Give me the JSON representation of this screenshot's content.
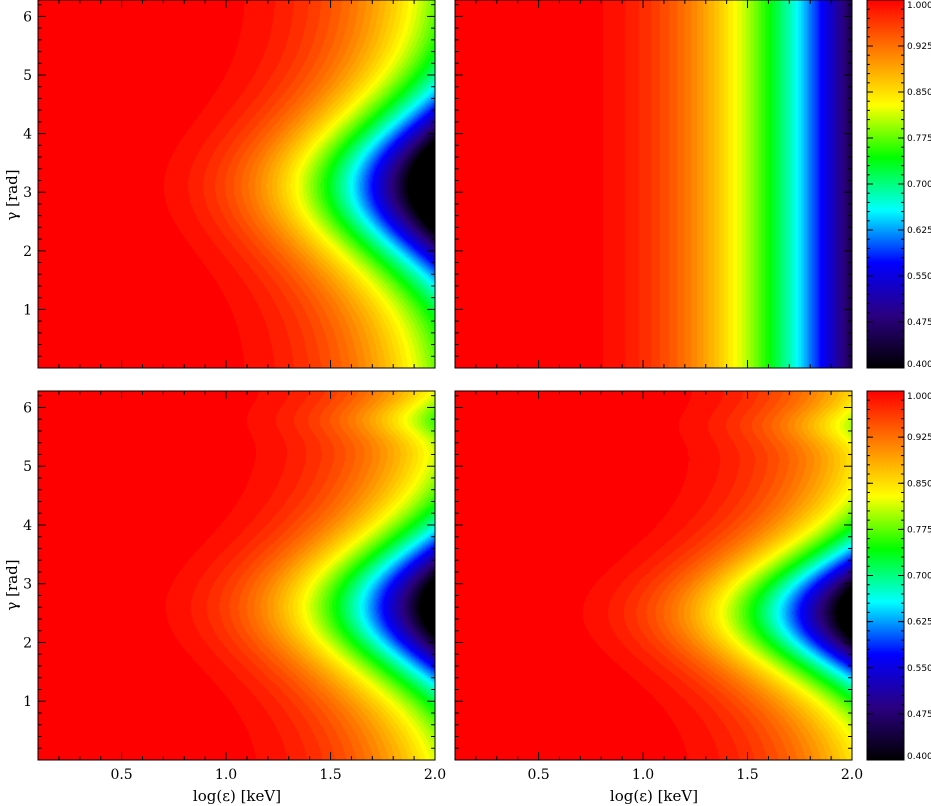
{
  "chart_data": [
    {
      "type": "heatmap",
      "panel": "top-left",
      "xlabel": "",
      "ylabel": "γ [rad]",
      "xlim": [
        0.1,
        2.0
      ],
      "ylim": [
        0.0,
        6.28
      ],
      "xticks": [
        0.5,
        1.0,
        1.5,
        2.0
      ],
      "yticks": [
        1,
        2,
        3,
        4,
        5,
        6
      ],
      "show_xtick_labels": false,
      "show_ytick_labels": true,
      "colorbar": false,
      "min_value": 0.5,
      "dip_center_gamma": 3.1,
      "dip_width_gamma": 1.6,
      "contour_offset_logE": 0.12
    },
    {
      "type": "heatmap",
      "panel": "top-right",
      "xlabel": "",
      "ylabel": "",
      "xlim": [
        0.1,
        2.0
      ],
      "ylim": [
        0.0,
        6.28
      ],
      "xticks": [
        0.5,
        1.0,
        1.5,
        2.0
      ],
      "yticks": [
        1,
        2,
        3,
        4,
        5,
        6
      ],
      "show_xtick_labels": false,
      "show_ytick_labels": false,
      "colorbar": true,
      "min_value": 0.45,
      "gamma_independent": true
    },
    {
      "type": "heatmap",
      "panel": "bottom-left",
      "xlabel": "log(ε) [keV]",
      "ylabel": "γ [rad]",
      "xlim": [
        0.1,
        2.0
      ],
      "ylim": [
        0.0,
        6.28
      ],
      "xticks": [
        0.5,
        1.0,
        1.5,
        2.0
      ],
      "yticks": [
        1,
        2,
        3,
        4,
        5,
        6
      ],
      "xtick_labels": [
        "0.5",
        "1.0",
        "1.5",
        "2.0"
      ],
      "show_xtick_labels": true,
      "show_ytick_labels": true,
      "colorbar": false,
      "min_value": 0.55,
      "dip_center_gamma": 2.6,
      "dip_width_gamma": 1.5,
      "secondary_dip_gamma": 5.8,
      "contour_offset_logE": 0.18
    },
    {
      "type": "heatmap",
      "panel": "bottom-right",
      "xlabel": "log(ε) [keV]",
      "ylabel": "",
      "xlim": [
        0.1,
        2.0
      ],
      "ylim": [
        0.0,
        6.28
      ],
      "xticks": [
        0.5,
        1.0,
        1.5,
        2.0
      ],
      "yticks": [
        1,
        2,
        3,
        4,
        5,
        6
      ],
      "xtick_labels": [
        "0.5",
        "1.0",
        "1.5",
        "2.0"
      ],
      "show_xtick_labels": true,
      "show_ytick_labels": false,
      "colorbar": true,
      "min_value": 0.55,
      "dip_center_gamma": 2.5,
      "dip_width_gamma": 1.4,
      "secondary_dip_gamma": 5.7,
      "contour_offset_logE": 0.25
    }
  ],
  "colorbar": {
    "ticks": [
      "1.000",
      "0.925",
      "0.850",
      "0.775",
      "0.700",
      "0.625",
      "0.550",
      "0.475",
      "0.400"
    ],
    "vmin": 0.4,
    "vmax": 1.0,
    "colormap": "rainbow",
    "stops": [
      "#000000",
      "#2a0080",
      "#0000ff",
      "#00ffff",
      "#00ff00",
      "#ffff00",
      "#ff8000",
      "#ff0000"
    ]
  },
  "ytick_labels": [
    "1",
    "2",
    "3",
    "4",
    "5",
    "6"
  ]
}
